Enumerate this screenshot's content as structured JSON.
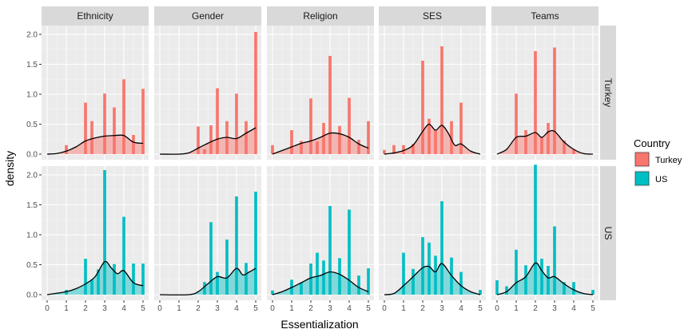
{
  "chart_data": {
    "type": "bar",
    "xlabel": "Essentialization",
    "ylabel": "density",
    "xlim": [
      0,
      5
    ],
    "ylim": [
      0,
      2
    ],
    "x_ticks": [
      "0",
      "1",
      "2",
      "3",
      "4",
      "5"
    ],
    "y_ticks": [
      "0.0",
      "0.5",
      "1.0",
      "1.5",
      "2.0"
    ],
    "facet_columns": [
      "Ethnicity",
      "Gender",
      "Religion",
      "SES",
      "Teams"
    ],
    "facet_rows": [
      "Turkey",
      "US"
    ],
    "bar_x": [
      0,
      0.167,
      0.333,
      0.5,
      0.667,
      0.833,
      1,
      1.167,
      1.333,
      1.5,
      1.667,
      1.833,
      2,
      2.167,
      2.333,
      2.5,
      2.667,
      2.833,
      3,
      3.167,
      3.333,
      3.5,
      3.667,
      3.833,
      4,
      4.167,
      4.333,
      4.5,
      4.667,
      4.833,
      5
    ],
    "legend": {
      "title": "Country",
      "entries": [
        {
          "label": "Turkey",
          "color": "#F8766D"
        },
        {
          "label": "US",
          "color": "#00BFC4"
        }
      ]
    },
    "panels": [
      {
        "column": "Ethnicity",
        "row": "Turkey",
        "bars": [
          [
            1,
            0.15
          ],
          [
            2,
            0.86
          ],
          [
            2.333,
            0.55
          ],
          [
            3,
            1.01
          ],
          [
            3.5,
            0.78
          ],
          [
            4,
            1.25
          ],
          [
            4.5,
            0.32
          ],
          [
            5,
            1.09
          ]
        ],
        "density": [
          [
            0,
            0
          ],
          [
            0.5,
            0.01
          ],
          [
            1,
            0.05
          ],
          [
            1.5,
            0.12
          ],
          [
            2,
            0.22
          ],
          [
            2.5,
            0.27
          ],
          [
            3,
            0.3
          ],
          [
            3.5,
            0.31
          ],
          [
            4,
            0.31
          ],
          [
            4.5,
            0.2
          ],
          [
            5,
            0.18
          ]
        ]
      },
      {
        "column": "Gender",
        "row": "Turkey",
        "bars": [
          [
            2,
            0.46
          ],
          [
            2.333,
            0.08
          ],
          [
            2.667,
            0.48
          ],
          [
            3,
            1.1
          ],
          [
            3.5,
            0.55
          ],
          [
            4,
            1.01
          ],
          [
            4.5,
            0.55
          ],
          [
            5,
            2.04
          ]
        ],
        "density": [
          [
            0,
            0
          ],
          [
            1,
            0
          ],
          [
            1.5,
            0.02
          ],
          [
            2,
            0.1
          ],
          [
            2.5,
            0.18
          ],
          [
            3,
            0.25
          ],
          [
            3.5,
            0.28
          ],
          [
            4,
            0.26
          ],
          [
            4.5,
            0.35
          ],
          [
            5,
            0.44
          ]
        ]
      },
      {
        "column": "Religion",
        "row": "Turkey",
        "bars": [
          [
            0,
            0.15
          ],
          [
            1,
            0.4
          ],
          [
            1.5,
            0.22
          ],
          [
            2,
            0.93
          ],
          [
            2.333,
            0.21
          ],
          [
            2.667,
            0.52
          ],
          [
            3,
            1.64
          ],
          [
            3.5,
            0.47
          ],
          [
            4,
            0.94
          ],
          [
            4.5,
            0.24
          ],
          [
            5,
            0.55
          ]
        ],
        "density": [
          [
            0,
            0
          ],
          [
            0.5,
            0.06
          ],
          [
            1,
            0.12
          ],
          [
            1.5,
            0.18
          ],
          [
            2,
            0.22
          ],
          [
            2.5,
            0.28
          ],
          [
            3,
            0.35
          ],
          [
            3.5,
            0.34
          ],
          [
            4,
            0.28
          ],
          [
            4.5,
            0.17
          ],
          [
            5,
            0.1
          ]
        ]
      },
      {
        "column": "SES",
        "row": "Turkey",
        "bars": [
          [
            0,
            0.07
          ],
          [
            0.5,
            0.15
          ],
          [
            1,
            0.15
          ],
          [
            1.5,
            0.17
          ],
          [
            2,
            1.56
          ],
          [
            2.333,
            0.59
          ],
          [
            2.667,
            0.4
          ],
          [
            3,
            1.8
          ],
          [
            3.5,
            0.55
          ],
          [
            4,
            0.86
          ]
        ],
        "density": [
          [
            0,
            0
          ],
          [
            0.5,
            0.02
          ],
          [
            1,
            0.06
          ],
          [
            1.5,
            0.15
          ],
          [
            2,
            0.38
          ],
          [
            2.333,
            0.5
          ],
          [
            2.667,
            0.4
          ],
          [
            3,
            0.48
          ],
          [
            3.333,
            0.35
          ],
          [
            3.667,
            0.15
          ],
          [
            4,
            0.17
          ],
          [
            4.5,
            0.05
          ],
          [
            5,
            0
          ]
        ]
      },
      {
        "column": "Teams",
        "row": "Turkey",
        "bars": [
          [
            1,
            1.01
          ],
          [
            1.5,
            0.4
          ],
          [
            2,
            1.72
          ],
          [
            2.333,
            0.29
          ],
          [
            2.667,
            0.52
          ],
          [
            3,
            1.78
          ],
          [
            3.5,
            0.23
          ],
          [
            4,
            0.08
          ]
        ],
        "density": [
          [
            0,
            0
          ],
          [
            0.5,
            0.08
          ],
          [
            1,
            0.28
          ],
          [
            1.5,
            0.3
          ],
          [
            2,
            0.36
          ],
          [
            2.333,
            0.28
          ],
          [
            2.667,
            0.37
          ],
          [
            3,
            0.38
          ],
          [
            3.5,
            0.2
          ],
          [
            4,
            0.08
          ],
          [
            4.5,
            0.01
          ],
          [
            5,
            0
          ]
        ]
      },
      {
        "column": "Ethnicity",
        "row": "US",
        "bars": [
          [
            1,
            0.08
          ],
          [
            2,
            0.6
          ],
          [
            2.333,
            0.25
          ],
          [
            2.667,
            0.42
          ],
          [
            3,
            2.08
          ],
          [
            3.5,
            0.51
          ],
          [
            4,
            1.3
          ],
          [
            4.5,
            0.52
          ],
          [
            5,
            0.52
          ]
        ],
        "density": [
          [
            0,
            0
          ],
          [
            1,
            0.05
          ],
          [
            1.5,
            0.1
          ],
          [
            2,
            0.18
          ],
          [
            2.5,
            0.3
          ],
          [
            3,
            0.55
          ],
          [
            3.333,
            0.45
          ],
          [
            3.667,
            0.35
          ],
          [
            4,
            0.4
          ],
          [
            4.5,
            0.2
          ],
          [
            5,
            0.15
          ]
        ]
      },
      {
        "column": "Gender",
        "row": "US",
        "bars": [
          [
            2.333,
            0.21
          ],
          [
            2.667,
            1.21
          ],
          [
            3,
            0.38
          ],
          [
            3.5,
            0.92
          ],
          [
            4,
            1.64
          ],
          [
            4.5,
            0.53
          ],
          [
            5,
            1.72
          ]
        ],
        "density": [
          [
            0,
            0
          ],
          [
            1.5,
            0
          ],
          [
            2,
            0.05
          ],
          [
            2.5,
            0.18
          ],
          [
            3,
            0.3
          ],
          [
            3.5,
            0.28
          ],
          [
            4,
            0.44
          ],
          [
            4.333,
            0.33
          ],
          [
            4.667,
            0.38
          ],
          [
            5,
            0.44
          ]
        ]
      },
      {
        "column": "Religion",
        "row": "US",
        "bars": [
          [
            0,
            0.07
          ],
          [
            1,
            0.25
          ],
          [
            1.5,
            0.2
          ],
          [
            2,
            0.52
          ],
          [
            2.333,
            0.7
          ],
          [
            2.667,
            0.57
          ],
          [
            3,
            1.48
          ],
          [
            3.5,
            0.61
          ],
          [
            4,
            1.42
          ],
          [
            4.5,
            0.32
          ],
          [
            5,
            0.44
          ]
        ],
        "density": [
          [
            0,
            0
          ],
          [
            0.5,
            0.05
          ],
          [
            1,
            0.12
          ],
          [
            1.5,
            0.2
          ],
          [
            2,
            0.28
          ],
          [
            2.5,
            0.32
          ],
          [
            3,
            0.38
          ],
          [
            3.5,
            0.34
          ],
          [
            4,
            0.24
          ],
          [
            4.5,
            0.12
          ],
          [
            5,
            0.05
          ]
        ]
      },
      {
        "column": "SES",
        "row": "US",
        "bars": [
          [
            1,
            0.7
          ],
          [
            1.5,
            0.43
          ],
          [
            2,
            0.96
          ],
          [
            2.333,
            0.87
          ],
          [
            2.667,
            0.65
          ],
          [
            3,
            1.56
          ],
          [
            3.5,
            0.62
          ],
          [
            4,
            0.38
          ],
          [
            5,
            0.08
          ]
        ],
        "density": [
          [
            0,
            0
          ],
          [
            0.5,
            0.02
          ],
          [
            1,
            0.15
          ],
          [
            1.5,
            0.3
          ],
          [
            2,
            0.45
          ],
          [
            2.333,
            0.47
          ],
          [
            2.667,
            0.38
          ],
          [
            3,
            0.52
          ],
          [
            3.5,
            0.32
          ],
          [
            4,
            0.15
          ],
          [
            4.5,
            0.05
          ],
          [
            5,
            0
          ]
        ]
      },
      {
        "column": "Teams",
        "row": "US",
        "bars": [
          [
            0,
            0.24
          ],
          [
            0.5,
            0.14
          ],
          [
            1,
            0.75
          ],
          [
            1.5,
            0.49
          ],
          [
            2,
            2.17
          ],
          [
            2.333,
            0.6
          ],
          [
            2.667,
            0.48
          ],
          [
            3,
            1.14
          ],
          [
            3.5,
            0.21
          ],
          [
            4,
            0.21
          ],
          [
            5,
            0.08
          ]
        ],
        "density": [
          [
            0,
            0
          ],
          [
            0.5,
            0.05
          ],
          [
            1,
            0.2
          ],
          [
            1.5,
            0.3
          ],
          [
            2,
            0.53
          ],
          [
            2.333,
            0.4
          ],
          [
            2.667,
            0.28
          ],
          [
            3,
            0.3
          ],
          [
            3.5,
            0.18
          ],
          [
            4,
            0.08
          ],
          [
            4.5,
            0.02
          ],
          [
            5,
            0
          ]
        ]
      }
    ]
  }
}
